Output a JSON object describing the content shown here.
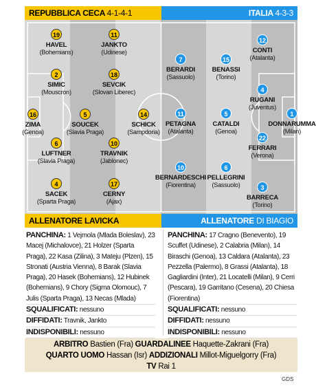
{
  "home": {
    "team": "REPUBBLICA CECA",
    "formation": "4-1-4-1",
    "coach_label": "ALLENATORE",
    "coach": "LAVICKA",
    "players": [
      {
        "number": "19",
        "name": "HAVEL",
        "club": "(Bohemians)"
      },
      {
        "number": "11",
        "name": "JANKTO",
        "club": "(Udinese)"
      },
      {
        "number": "2",
        "name": "SIMIC",
        "club": "(Mouscron)"
      },
      {
        "number": "18",
        "name": "SEVCIK",
        "club": "(Slovan Liberec)"
      },
      {
        "number": "16",
        "name": "ZIMA",
        "club": "(Genoa)"
      },
      {
        "number": "5",
        "name": "SOUCEK",
        "club": "(Slavia Praga)"
      },
      {
        "number": "14",
        "name": "SCHICK",
        "club": "(Sampdoria)"
      },
      {
        "number": "6",
        "name": "LUFTNER",
        "club": "(Slavia Praga)"
      },
      {
        "number": "10",
        "name": "TRAVNIK",
        "club": "(Jablonec)"
      },
      {
        "number": "4",
        "name": "SACEK",
        "club": "(Sparta Praga)"
      },
      {
        "number": "17",
        "name": "CERNY",
        "club": "(Ajax)"
      }
    ],
    "bench_label": "PANCHINA:",
    "bench": "1 Vejmola (Mlada Boleslav), 23 Macej (Michalovce), 21 Holzer (Sparta Praga), 22 Kasa (Zilina), 3 Mateju (Plzen), 15 Stronati (Austria Vienna), 8 Barak (Slavia Praga), 20 Hasek (Bohemians), 12 Hubinek (Bohemians), 9 Chory (Sigma Olomouc), 7 Julis (Sparta Praga), 13 Necas (Mlada)",
    "suspended_label": "SQUALIFICATI:",
    "suspended": "nessuno",
    "warned_label": "DIFFIDATI:",
    "warned": "Travnik, Jankto",
    "unavailable_label": "INDISPONIBILI:",
    "unavailable": "nessuno"
  },
  "away": {
    "team": "ITALIA",
    "formation": "4-3-3",
    "coach_label": "ALLENATORE",
    "coach": "DI BIAGIO",
    "players": [
      {
        "number": "7",
        "name": "BERARDI",
        "club": "(Sassuolo)"
      },
      {
        "number": "15",
        "name": "BENASSI",
        "club": "(Torino)"
      },
      {
        "number": "12",
        "name": "CONTI",
        "club": "(Atalanta)"
      },
      {
        "number": "4",
        "name": "RUGANI",
        "club": "(Juventus)"
      },
      {
        "number": "1",
        "name": "DONNARUMMA",
        "club": "(Milan)"
      },
      {
        "number": "11",
        "name": "PETAGNA",
        "club": "(Atalanta)"
      },
      {
        "number": "5",
        "name": "CATALDI",
        "club": "(Genoa)"
      },
      {
        "number": "22",
        "name": "FERRARI",
        "club": "(Verona)"
      },
      {
        "number": "10",
        "name": "BERNARDESCHI",
        "club": "(Fiorentina)"
      },
      {
        "number": "6",
        "name": "PELLEGRINI",
        "club": "(Sassuolo)"
      },
      {
        "number": "3",
        "name": "BARRECA",
        "club": "(Torino)"
      }
    ],
    "bench_label": "PANCHINA:",
    "bench": "17 Cragno (Benevento), 19 Scuffet (Udinese), 2 Calabria (Milan), 14 Biraschi (Genoa), 13 Caldara (Atalanta), 23 Pezzella (Palermo), 8 Grassi (Atalanta), 18 Gagliardini (Inter), 21 Locatelli (Milan), 9 Cerri (Pescara), 19 Garritano (Cesena), 20 Chiesa (Fiorentina)",
    "suspended_label": "SQUALIFICATI:",
    "suspended": "nessuno",
    "warned_label": "DIFFIDATI:",
    "warned": "nessuno",
    "unavailable_label": "INDISPONIBILI:",
    "unavailable": "nessuno"
  },
  "officials": [
    [
      {
        "label": "ARBITRO",
        "value": "Bastien (Fra)"
      },
      {
        "label": "GUARDALINEE",
        "value": "Haquette-Zakrani (Fra)"
      }
    ],
    [
      {
        "label": "QUARTO UOMO",
        "value": "Hassan (Isr)"
      },
      {
        "label": "ADDIZIONALI",
        "value": "Millot-Miguelgorry (Fra)"
      }
    ],
    [
      {
        "label": "TV",
        "value": "Rai 1"
      }
    ]
  ],
  "footer": "GDS"
}
